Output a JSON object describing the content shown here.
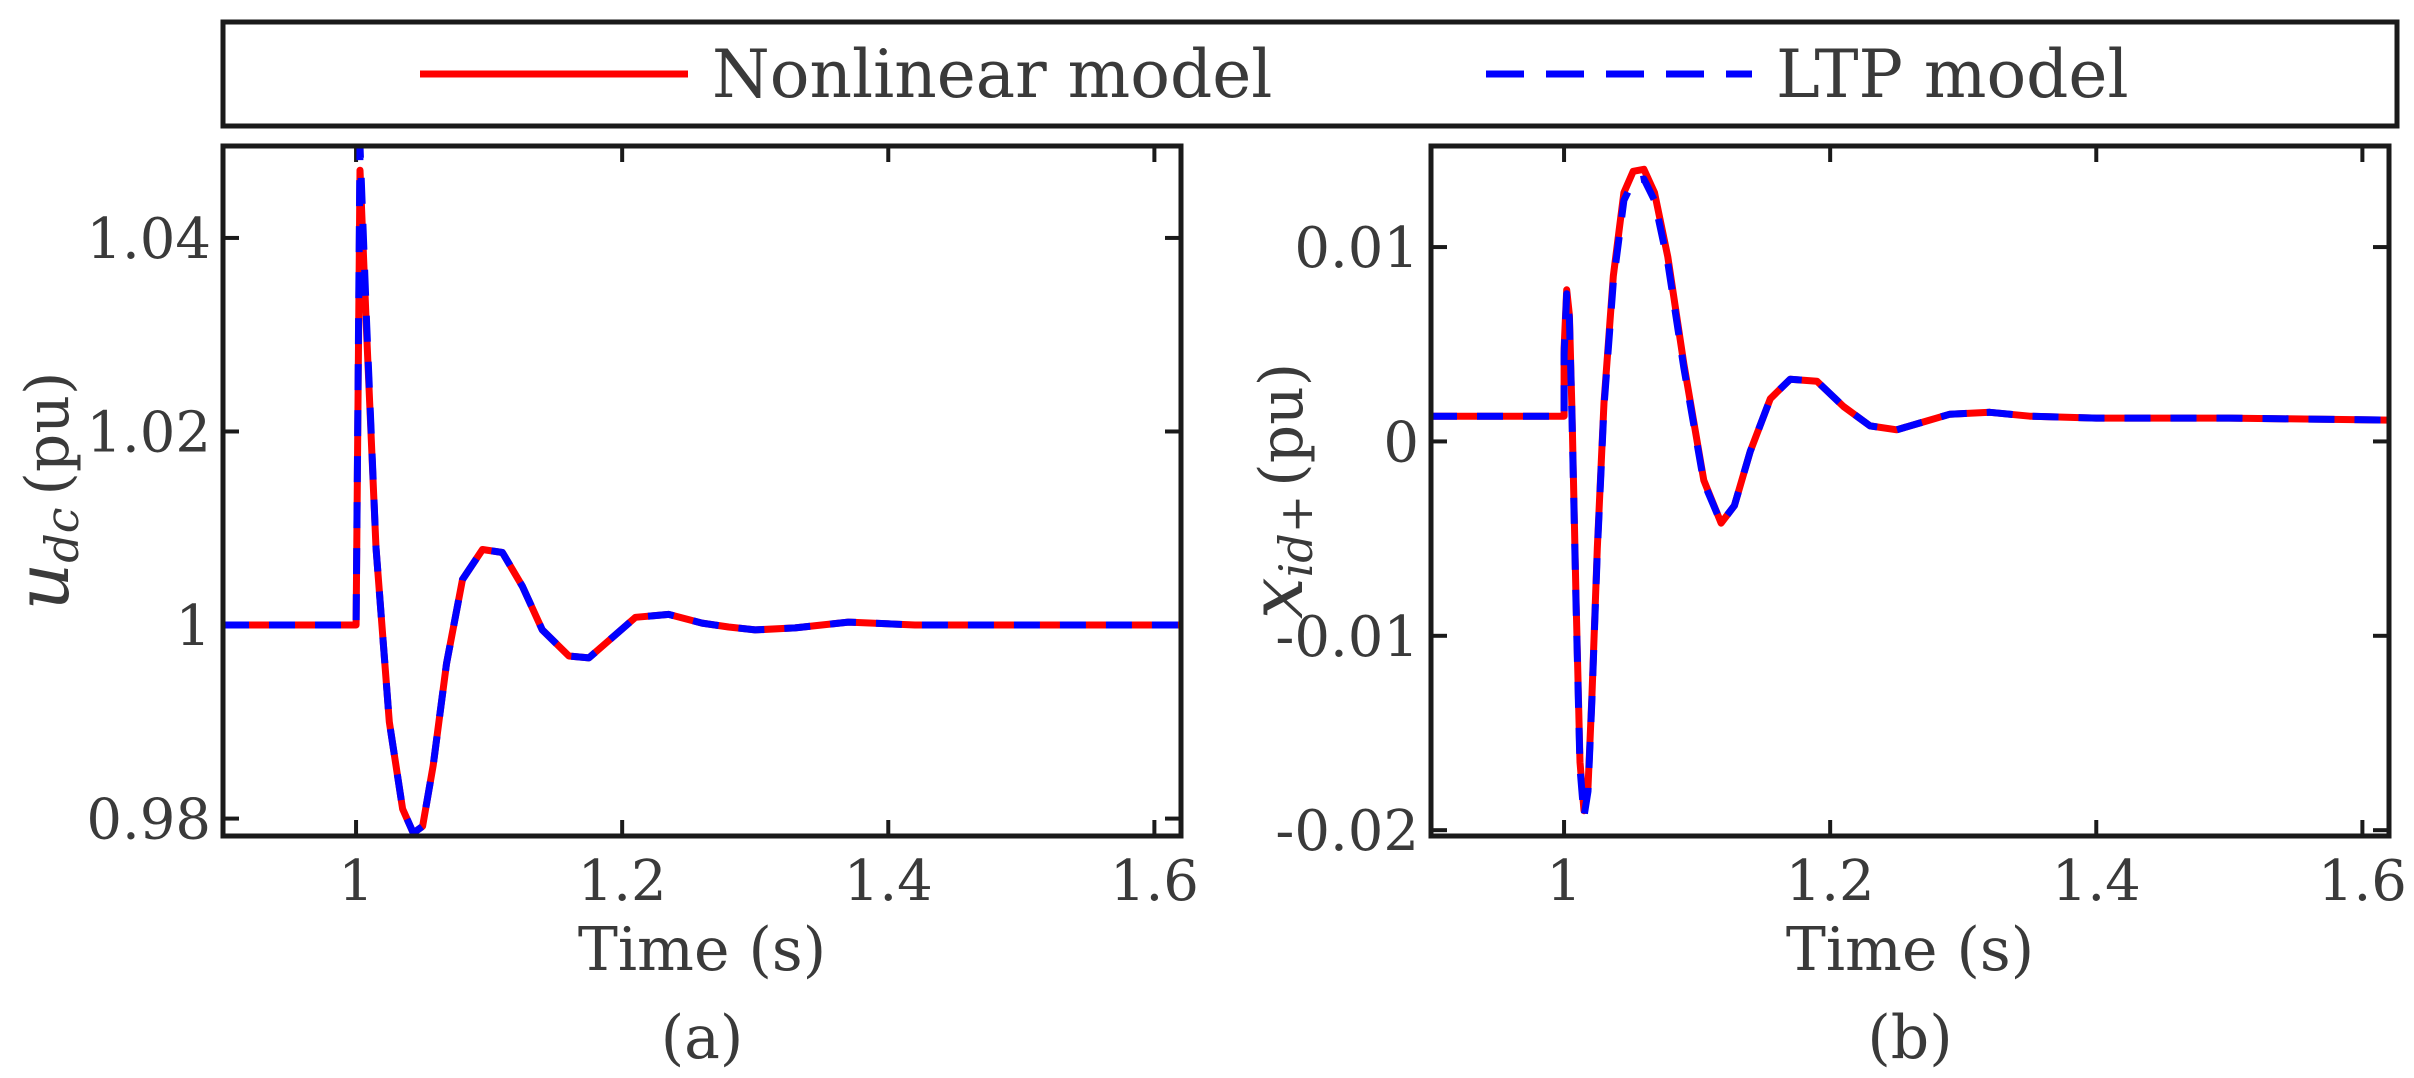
{
  "legend": {
    "items": [
      {
        "name": "Nonlinear model",
        "color": "#ff0000",
        "style": "solid"
      },
      {
        "name": "LTP model",
        "color": "#0000ff",
        "style": "dashed"
      }
    ]
  },
  "chart_data": [
    {
      "type": "line",
      "caption": "(a)",
      "xlabel": "Time (s)",
      "ylabel": {
        "symbol": "u",
        "subscript": "dc",
        "unit": "(pu)"
      },
      "xlim": [
        0.9,
        1.62
      ],
      "ylim": [
        0.9782,
        1.0495
      ],
      "xticks": [
        1,
        1.2,
        1.4,
        1.6
      ],
      "xtick_labels": [
        "1",
        "1.2",
        "1.4",
        "1.6"
      ],
      "yticks": [
        0.98,
        1,
        1.02,
        1.04
      ],
      "ytick_labels": [
        "0.98",
        "1",
        "1.02",
        "1.04"
      ],
      "series": [
        {
          "name": "Nonlinear model",
          "color": "#ff0000",
          "style": "solid",
          "x": [
            0.9,
            1.0,
            1.0,
            1.003,
            1.008,
            1.015,
            1.025,
            1.035,
            1.043,
            1.05,
            1.058,
            1.068,
            1.08,
            1.095,
            1.11,
            1.125,
            1.14,
            1.16,
            1.175,
            1.19,
            1.21,
            1.235,
            1.26,
            1.28,
            1.3,
            1.33,
            1.37,
            1.42,
            1.5,
            1.62
          ],
          "y": [
            1.0,
            1.0,
            1.0,
            1.047,
            1.03,
            1.008,
            0.99,
            0.981,
            0.9785,
            0.9792,
            0.9855,
            0.996,
            1.0047,
            1.0078,
            1.0075,
            1.004,
            0.9995,
            0.9968,
            0.9966,
            0.9984,
            1.0008,
            1.0011,
            1.0002,
            0.9998,
            0.9995,
            0.9997,
            1.0003,
            1.0,
            1.0,
            1.0
          ]
        },
        {
          "name": "LTP model",
          "color": "#0000ff",
          "style": "dashed",
          "x": [
            0.9,
            1.0,
            1.0,
            1.003,
            1.008,
            1.015,
            1.025,
            1.035,
            1.043,
            1.05,
            1.058,
            1.068,
            1.08,
            1.095,
            1.11,
            1.125,
            1.14,
            1.16,
            1.175,
            1.19,
            1.21,
            1.235,
            1.26,
            1.28,
            1.3,
            1.33,
            1.37,
            1.42,
            1.5,
            1.62
          ],
          "y": [
            1.0,
            1.0,
            1.0,
            1.0495,
            1.031,
            1.008,
            0.99,
            0.981,
            0.9785,
            0.9792,
            0.9855,
            0.996,
            1.0047,
            1.0078,
            1.0075,
            1.004,
            0.9995,
            0.9968,
            0.9966,
            0.9984,
            1.0008,
            1.0011,
            1.0002,
            0.9998,
            0.9995,
            0.9997,
            1.0003,
            1.0,
            1.0,
            1.0
          ]
        }
      ]
    },
    {
      "type": "line",
      "caption": "(b)",
      "xlabel": "Time (s)",
      "ylabel": {
        "symbol": "x",
        "subscript": "id+",
        "unit": "(pu)"
      },
      "xlim": [
        0.9,
        1.62
      ],
      "ylim": [
        -0.0203,
        0.0152
      ],
      "xticks": [
        1,
        1.2,
        1.4,
        1.6
      ],
      "xtick_labels": [
        "1",
        "1.2",
        "1.4",
        "1.6"
      ],
      "yticks": [
        -0.02,
        -0.01,
        0,
        0.01
      ],
      "ytick_labels": [
        "-0.02",
        "-0.01",
        "0",
        "0.01"
      ],
      "series": [
        {
          "name": "Nonlinear model",
          "color": "#ff0000",
          "style": "solid",
          "x": [
            0.9,
            1.0,
            1.0,
            1.002,
            1.004,
            1.006,
            1.009,
            1.012,
            1.015,
            1.018,
            1.021,
            1.025,
            1.03,
            1.037,
            1.045,
            1.052,
            1.06,
            1.068,
            1.078,
            1.09,
            1.105,
            1.118,
            1.128,
            1.14,
            1.155,
            1.17,
            1.19,
            1.21,
            1.23,
            1.25,
            1.27,
            1.29,
            1.32,
            1.35,
            1.4,
            1.5,
            1.62
          ],
          "y": [
            0.0013,
            0.0013,
            0.0048,
            0.0078,
            0.0065,
            0.0015,
            -0.008,
            -0.0165,
            -0.019,
            -0.0178,
            -0.013,
            -0.0055,
            0.002,
            0.0085,
            0.0128,
            0.0139,
            0.014,
            0.0128,
            0.0095,
            0.004,
            -0.002,
            -0.0042,
            -0.0033,
            -0.0005,
            0.0022,
            0.0032,
            0.0031,
            0.0018,
            0.0008,
            0.0006,
            0.001,
            0.0014,
            0.0015,
            0.0013,
            0.0012,
            0.0012,
            0.0011
          ]
        },
        {
          "name": "LTP model",
          "color": "#0000ff",
          "style": "dashed",
          "x": [
            0.9,
            1.0,
            1.0,
            1.002,
            1.004,
            1.006,
            1.009,
            1.012,
            1.015,
            1.018,
            1.021,
            1.025,
            1.03,
            1.037,
            1.045,
            1.052,
            1.06,
            1.068,
            1.078,
            1.09,
            1.105,
            1.118,
            1.128,
            1.14,
            1.155,
            1.17,
            1.19,
            1.21,
            1.23,
            1.25,
            1.27,
            1.29,
            1.32,
            1.35,
            1.4,
            1.5,
            1.62
          ],
          "y": [
            0.0013,
            0.0013,
            0.0045,
            0.0076,
            0.0063,
            0.0012,
            -0.0083,
            -0.0168,
            -0.0193,
            -0.018,
            -0.0132,
            -0.0057,
            0.0018,
            0.0082,
            0.0124,
            0.0134,
            0.0135,
            0.0124,
            0.0092,
            0.0038,
            -0.0021,
            -0.0042,
            -0.0033,
            -0.0005,
            0.0022,
            0.0032,
            0.0031,
            0.0018,
            0.0008,
            0.0006,
            0.001,
            0.0014,
            0.0015,
            0.0013,
            0.0012,
            0.0012,
            0.0011
          ]
        }
      ]
    }
  ]
}
